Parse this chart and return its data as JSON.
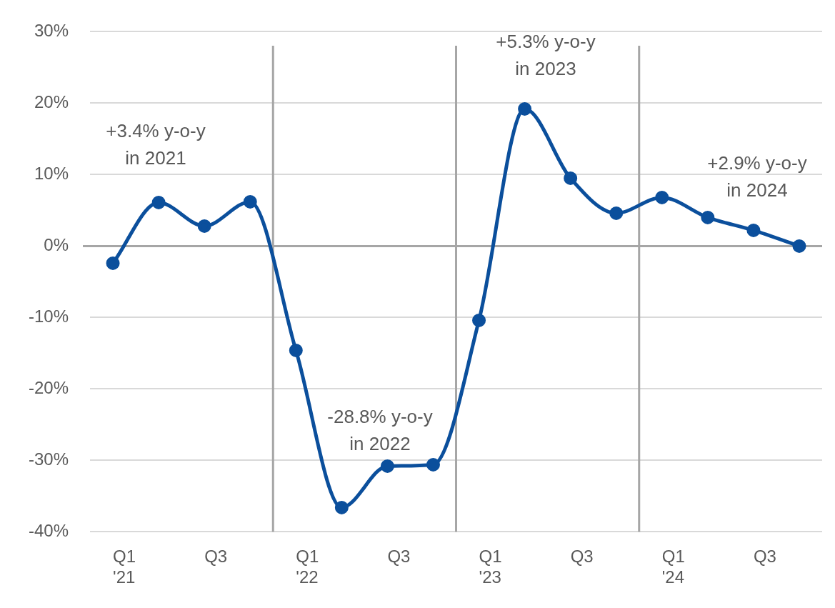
{
  "chart_data": {
    "type": "line",
    "categories": [
      "Q1\n'21",
      null,
      "Q3",
      null,
      "Q1\n'22",
      null,
      "Q3",
      null,
      "Q1\n'23",
      null,
      "Q3",
      null,
      "Q1\n'24",
      null,
      "Q3",
      null
    ],
    "series": [
      {
        "color": "#0b4f9c",
        "values": [
          -2.4,
          6.1,
          2.8,
          6.2,
          -14.6,
          -36.6,
          -30.8,
          -30.6,
          -10.4,
          19.2,
          9.5,
          4.6,
          6.8,
          4.0,
          2.2,
          0
        ]
      }
    ],
    "ylim": [
      -40,
      30
    ],
    "yticks": [
      {
        "value": -40,
        "label": "-40%"
      },
      {
        "value": -30,
        "label": "-30%"
      },
      {
        "value": -20,
        "label": "-20%"
      },
      {
        "value": -10,
        "label": "-10%"
      },
      {
        "value": 0,
        "label": "0%"
      },
      {
        "value": 10,
        "label": "10%"
      },
      {
        "value": 20,
        "label": "20%"
      },
      {
        "value": 30,
        "label": "30%"
      }
    ],
    "grid": "y",
    "marker": "circle",
    "line_style": "solid",
    "ref_lines": [
      {
        "axis": "y",
        "value": 0,
        "color": "#a6a6a6"
      }
    ],
    "annotations": [
      "+3.4% y-o-y\nin 2021",
      "-28.8% y-o-y\nin 2022",
      "+5.3% y-o-y\nin 2023",
      "+2.9% y-o-y\nin 2024"
    ]
  }
}
